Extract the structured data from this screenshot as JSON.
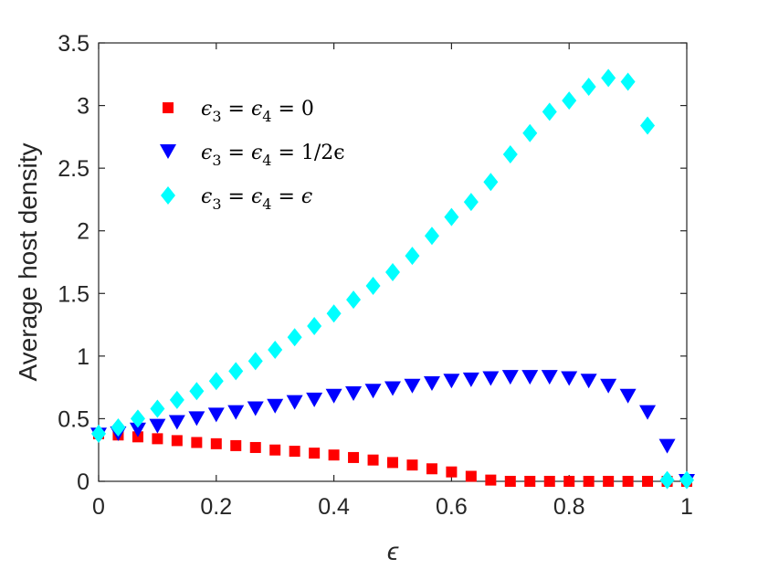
{
  "chart_data": {
    "type": "scatter",
    "title": "",
    "xlabel": "ϵ",
    "ylabel": "Average host density",
    "xlim": [
      0,
      1
    ],
    "ylim": [
      0,
      3.5
    ],
    "xticks": [
      "0",
      "0.2",
      "0.4",
      "0.6",
      "0.8",
      "1"
    ],
    "yticks": [
      "0",
      "0.5",
      "1",
      "1.5",
      "2",
      "2.5",
      "3",
      "3.5"
    ],
    "grid": false,
    "legend_position": "top-left",
    "series": [
      {
        "name": "ϵ3 = ϵ4 = 0",
        "legend_label": {
          "a": "ϵ",
          "a_sub": "3",
          "eq1": " = ",
          "b": "ϵ",
          "b_sub": "4",
          "eq2": " = ",
          "rhs": "0"
        },
        "marker": "square",
        "color": "#ff0000",
        "x": [
          0,
          0.0333,
          0.0667,
          0.1,
          0.1333,
          0.1667,
          0.2,
          0.2333,
          0.2667,
          0.3,
          0.3333,
          0.3667,
          0.4,
          0.4333,
          0.4667,
          0.5,
          0.5333,
          0.5667,
          0.6,
          0.6333,
          0.6667,
          0.7,
          0.7333,
          0.7667,
          0.8,
          0.8333,
          0.8667,
          0.9,
          0.9333,
          0.9667,
          1
        ],
        "y": [
          0.38,
          0.37,
          0.355,
          0.34,
          0.325,
          0.31,
          0.3,
          0.285,
          0.27,
          0.25,
          0.24,
          0.225,
          0.21,
          0.19,
          0.17,
          0.15,
          0.13,
          0.1,
          0.075,
          0.04,
          0.01,
          0,
          0,
          0,
          0,
          0,
          0,
          0,
          0,
          0,
          0
        ]
      },
      {
        "name": "ϵ3 = ϵ4 = 1/2ϵ",
        "legend_label": {
          "a": "ϵ",
          "a_sub": "3",
          "eq1": " = ",
          "b": "ϵ",
          "b_sub": "4",
          "eq2": " = ",
          "rhs": "1/2ϵ"
        },
        "marker": "triangle-down",
        "color": "#0000ff",
        "x": [
          0,
          0.0333,
          0.0667,
          0.1,
          0.1333,
          0.1667,
          0.2,
          0.2333,
          0.2667,
          0.3,
          0.3333,
          0.3667,
          0.4,
          0.4333,
          0.4667,
          0.5,
          0.5333,
          0.5667,
          0.6,
          0.6333,
          0.6667,
          0.7,
          0.7333,
          0.7667,
          0.8,
          0.8333,
          0.8667,
          0.9,
          0.9333,
          0.9667,
          1
        ],
        "y": [
          0.37,
          0.38,
          0.41,
          0.44,
          0.47,
          0.5,
          0.53,
          0.55,
          0.58,
          0.6,
          0.63,
          0.65,
          0.68,
          0.7,
          0.72,
          0.74,
          0.76,
          0.78,
          0.8,
          0.81,
          0.82,
          0.83,
          0.83,
          0.83,
          0.82,
          0.8,
          0.76,
          0.68,
          0.55,
          0.28,
          0
        ]
      },
      {
        "name": "ϵ3 = ϵ4 = ϵ",
        "legend_label": {
          "a": "ϵ",
          "a_sub": "3",
          "eq1": " = ",
          "b": "ϵ",
          "b_sub": "4",
          "eq2": " = ",
          "rhs": "ϵ"
        },
        "marker": "diamond",
        "color": "#00ffff",
        "x": [
          0,
          0.0333,
          0.0667,
          0.1,
          0.1333,
          0.1667,
          0.2,
          0.2333,
          0.2667,
          0.3,
          0.3333,
          0.3667,
          0.4,
          0.4333,
          0.4667,
          0.5,
          0.5333,
          0.5667,
          0.6,
          0.6333,
          0.6667,
          0.7,
          0.7333,
          0.7667,
          0.8,
          0.8333,
          0.8667,
          0.9,
          0.9333,
          0.9667,
          1
        ],
        "y": [
          0.38,
          0.43,
          0.5,
          0.58,
          0.65,
          0.72,
          0.8,
          0.88,
          0.96,
          1.05,
          1.15,
          1.24,
          1.34,
          1.45,
          1.56,
          1.67,
          1.8,
          1.96,
          2.11,
          2.23,
          2.39,
          2.61,
          2.78,
          2.95,
          3.04,
          3.15,
          3.22,
          3.19,
          2.84,
          0.01,
          0.01
        ]
      }
    ]
  },
  "colors": {
    "axis": "#262626",
    "background": "#ffffff"
  }
}
